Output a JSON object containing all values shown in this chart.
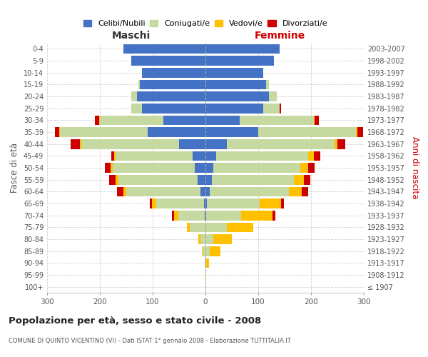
{
  "age_groups": [
    "100+",
    "95-99",
    "90-94",
    "85-89",
    "80-84",
    "75-79",
    "70-74",
    "65-69",
    "60-64",
    "55-59",
    "50-54",
    "45-49",
    "40-44",
    "35-39",
    "30-34",
    "25-29",
    "20-24",
    "15-19",
    "10-14",
    "5-9",
    "0-4"
  ],
  "birth_years": [
    "≤ 1907",
    "1908-1912",
    "1913-1917",
    "1918-1922",
    "1923-1927",
    "1928-1932",
    "1933-1937",
    "1938-1942",
    "1943-1947",
    "1948-1952",
    "1953-1957",
    "1958-1962",
    "1963-1967",
    "1968-1972",
    "1973-1977",
    "1978-1982",
    "1983-1987",
    "1988-1992",
    "1993-1997",
    "1998-2002",
    "2003-2007"
  ],
  "male": {
    "celibe": [
      0,
      0,
      0,
      0,
      0,
      0,
      2,
      3,
      10,
      15,
      20,
      25,
      50,
      110,
      80,
      120,
      130,
      125,
      120,
      140,
      155
    ],
    "coniugato": [
      0,
      0,
      2,
      5,
      10,
      30,
      50,
      90,
      140,
      150,
      155,
      145,
      185,
      165,
      120,
      20,
      10,
      2,
      0,
      0,
      0
    ],
    "vedovo": [
      0,
      0,
      0,
      2,
      3,
      5,
      8,
      8,
      6,
      5,
      5,
      3,
      3,
      2,
      1,
      0,
      0,
      0,
      0,
      0,
      0
    ],
    "divorziato": [
      0,
      0,
      0,
      0,
      0,
      0,
      3,
      4,
      12,
      12,
      10,
      5,
      18,
      8,
      8,
      0,
      0,
      0,
      0,
      0,
      0
    ]
  },
  "female": {
    "nubile": [
      0,
      0,
      0,
      0,
      0,
      0,
      2,
      3,
      8,
      12,
      15,
      20,
      40,
      100,
      65,
      110,
      120,
      115,
      110,
      130,
      140
    ],
    "coniugata": [
      0,
      0,
      2,
      8,
      15,
      40,
      65,
      100,
      150,
      155,
      165,
      175,
      205,
      185,
      140,
      30,
      15,
      5,
      0,
      0,
      0
    ],
    "vedova": [
      0,
      1,
      5,
      20,
      35,
      50,
      60,
      40,
      25,
      20,
      15,
      10,
      5,
      3,
      2,
      1,
      0,
      0,
      0,
      0,
      0
    ],
    "divorziata": [
      0,
      0,
      0,
      0,
      0,
      0,
      5,
      5,
      12,
      12,
      12,
      12,
      15,
      10,
      8,
      2,
      0,
      0,
      0,
      0,
      0
    ]
  },
  "colors": {
    "celibe": "#4472c4",
    "coniugato": "#c5d9a0",
    "vedovo": "#ffc000",
    "divorziato": "#cc0000"
  },
  "legend_labels": [
    "Celibi/Nubili",
    "Coniugati/e",
    "Vedovi/e",
    "Divorziati/e"
  ],
  "title": "Popolazione per età, sesso e stato civile - 2008",
  "subtitle": "COMUNE DI QUINTO VICENTINO (VI) - Dati ISTAT 1° gennaio 2008 - Elaborazione TUTTITALIA.IT",
  "ylabel_left": "Fasce di età",
  "ylabel_right": "Anni di nascita",
  "xlabel_left": "Maschi",
  "xlabel_right": "Femmine",
  "xlim": 300,
  "background_color": "#ffffff",
  "grid_color": "#cccccc"
}
